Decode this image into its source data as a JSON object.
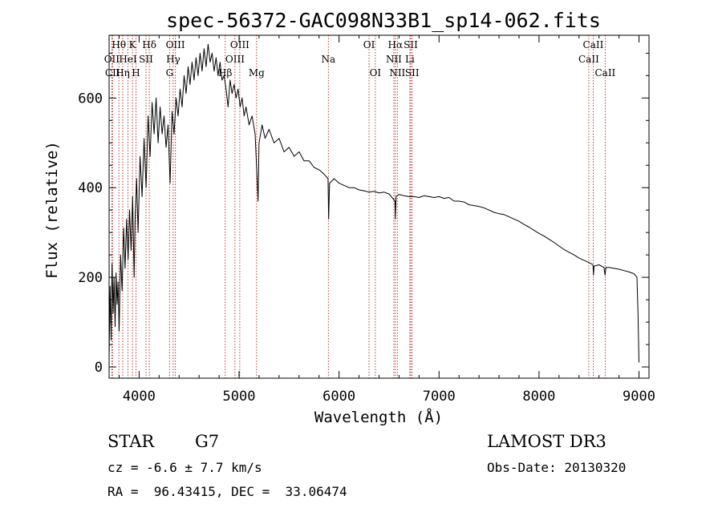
{
  "chart_data": {
    "type": "line",
    "title": "spec-56372-GAC098N33B1_sp14-062.fits",
    "xlabel": "Wavelength (Å)",
    "ylabel": "Flux (relative)",
    "xlim": [
      3700,
      9100
    ],
    "ylim": [
      -25,
      740
    ],
    "xticks": [
      4000,
      5000,
      6000,
      7000,
      8000,
      9000
    ],
    "yticks": [
      0,
      200,
      400,
      600
    ],
    "series": [
      {
        "name": "flux",
        "points": [
          [
            3700,
            20
          ],
          [
            3710,
            180
          ],
          [
            3720,
            60
          ],
          [
            3730,
            230
          ],
          [
            3740,
            120
          ],
          [
            3750,
            200
          ],
          [
            3760,
            90
          ],
          [
            3770,
            210
          ],
          [
            3780,
            140
          ],
          [
            3790,
            190
          ],
          [
            3800,
            80
          ],
          [
            3815,
            250
          ],
          [
            3830,
            170
          ],
          [
            3845,
            310
          ],
          [
            3860,
            220
          ],
          [
            3875,
            330
          ],
          [
            3890,
            240
          ],
          [
            3905,
            350
          ],
          [
            3920,
            260
          ],
          [
            3935,
            380
          ],
          [
            3950,
            200
          ],
          [
            3960,
            330
          ],
          [
            3975,
            420
          ],
          [
            3990,
            300
          ],
          [
            4010,
            470
          ],
          [
            4030,
            380
          ],
          [
            4050,
            510
          ],
          [
            4070,
            400
          ],
          [
            4090,
            560
          ],
          [
            4110,
            470
          ],
          [
            4130,
            590
          ],
          [
            4150,
            520
          ],
          [
            4170,
            600
          ],
          [
            4190,
            500
          ],
          [
            4210,
            580
          ],
          [
            4230,
            520
          ],
          [
            4250,
            560
          ],
          [
            4270,
            490
          ],
          [
            4290,
            540
          ],
          [
            4310,
            410
          ],
          [
            4330,
            570
          ],
          [
            4350,
            520
          ],
          [
            4370,
            600
          ],
          [
            4390,
            560
          ],
          [
            4410,
            620
          ],
          [
            4430,
            580
          ],
          [
            4450,
            650
          ],
          [
            4470,
            610
          ],
          [
            4490,
            670
          ],
          [
            4510,
            630
          ],
          [
            4530,
            680
          ],
          [
            4550,
            640
          ],
          [
            4570,
            690
          ],
          [
            4590,
            650
          ],
          [
            4610,
            700
          ],
          [
            4630,
            660
          ],
          [
            4650,
            710
          ],
          [
            4670,
            670
          ],
          [
            4690,
            720
          ],
          [
            4710,
            680
          ],
          [
            4730,
            700
          ],
          [
            4750,
            660
          ],
          [
            4770,
            690
          ],
          [
            4790,
            650
          ],
          [
            4810,
            680
          ],
          [
            4830,
            640
          ],
          [
            4850,
            650
          ],
          [
            4870,
            620
          ],
          [
            4890,
            580
          ],
          [
            4910,
            640
          ],
          [
            4930,
            610
          ],
          [
            4950,
            630
          ],
          [
            4970,
            600
          ],
          [
            4990,
            620
          ],
          [
            5010,
            580
          ],
          [
            5030,
            600
          ],
          [
            5050,
            560
          ],
          [
            5070,
            580
          ],
          [
            5100,
            540
          ],
          [
            5130,
            560
          ],
          [
            5160,
            520
          ],
          [
            5180,
            420
          ],
          [
            5190,
            370
          ],
          [
            5200,
            500
          ],
          [
            5230,
            540
          ],
          [
            5260,
            510
          ],
          [
            5300,
            530
          ],
          [
            5350,
            500
          ],
          [
            5400,
            510
          ],
          [
            5450,
            480
          ],
          [
            5500,
            490
          ],
          [
            5550,
            470
          ],
          [
            5600,
            480
          ],
          [
            5650,
            460
          ],
          [
            5700,
            460
          ],
          [
            5750,
            445
          ],
          [
            5800,
            440
          ],
          [
            5850,
            430
          ],
          [
            5890,
            420
          ],
          [
            5896,
            330
          ],
          [
            5905,
            410
          ],
          [
            5950,
            420
          ],
          [
            6000,
            410
          ],
          [
            6050,
            405
          ],
          [
            6100,
            400
          ],
          [
            6150,
            400
          ],
          [
            6200,
            395
          ],
          [
            6250,
            393
          ],
          [
            6300,
            390
          ],
          [
            6350,
            392
          ],
          [
            6400,
            388
          ],
          [
            6450,
            390
          ],
          [
            6500,
            386
          ],
          [
            6560,
            370
          ],
          [
            6563,
            330
          ],
          [
            6570,
            380
          ],
          [
            6600,
            385
          ],
          [
            6650,
            382
          ],
          [
            6700,
            380
          ],
          [
            6750,
            380
          ],
          [
            6800,
            378
          ],
          [
            6850,
            382
          ],
          [
            6900,
            380
          ],
          [
            6950,
            378
          ],
          [
            7000,
            380
          ],
          [
            7050,
            376
          ],
          [
            7100,
            378
          ],
          [
            7150,
            370
          ],
          [
            7200,
            370
          ],
          [
            7250,
            368
          ],
          [
            7300,
            362
          ],
          [
            7350,
            360
          ],
          [
            7400,
            358
          ],
          [
            7450,
            355
          ],
          [
            7500,
            350
          ],
          [
            7550,
            345
          ],
          [
            7600,
            342
          ],
          [
            7650,
            340
          ],
          [
            7700,
            335
          ],
          [
            7750,
            330
          ],
          [
            7800,
            325
          ],
          [
            7850,
            318
          ],
          [
            7900,
            312
          ],
          [
            7950,
            305
          ],
          [
            8000,
            298
          ],
          [
            8050,
            292
          ],
          [
            8100,
            285
          ],
          [
            8150,
            278
          ],
          [
            8200,
            270
          ],
          [
            8250,
            262
          ],
          [
            8300,
            256
          ],
          [
            8350,
            250
          ],
          [
            8400,
            243
          ],
          [
            8450,
            238
          ],
          [
            8500,
            233
          ],
          [
            8540,
            228
          ],
          [
            8545,
            205
          ],
          [
            8550,
            225
          ],
          [
            8600,
            228
          ],
          [
            8650,
            222
          ],
          [
            8660,
            205
          ],
          [
            8670,
            222
          ],
          [
            8700,
            222
          ],
          [
            8750,
            220
          ],
          [
            8800,
            218
          ],
          [
            8850,
            215
          ],
          [
            8900,
            212
          ],
          [
            8950,
            208
          ],
          [
            8980,
            200
          ],
          [
            8990,
            120
          ],
          [
            9000,
            10
          ]
        ]
      }
    ],
    "line_markers": [
      {
        "label": "Hθ",
        "x": 3798,
        "row": 0
      },
      {
        "label": "OII",
        "x": 3727,
        "row": 1
      },
      {
        "label": "CII",
        "x": 3734,
        "row": 2
      },
      {
        "label": "K",
        "x": 3934,
        "row": 0
      },
      {
        "label": "HeI",
        "x": 3889,
        "row": 1
      },
      {
        "label": "Hη",
        "x": 3836,
        "row": 2
      },
      {
        "label": "Hδ",
        "x": 4102,
        "row": 0
      },
      {
        "label": "SII",
        "x": 4069,
        "row": 1
      },
      {
        "label": "H",
        "x": 3969,
        "row": 2
      },
      {
        "label": "OIII",
        "x": 4363,
        "row": 0
      },
      {
        "label": "Hγ",
        "x": 4341,
        "row": 1
      },
      {
        "label": "G",
        "x": 4305,
        "row": 2
      },
      {
        "label": "OIII",
        "x": 5007,
        "row": 0
      },
      {
        "label": "OIII",
        "x": 4959,
        "row": 1
      },
      {
        "label": "Hβ",
        "x": 4861,
        "row": 2
      },
      {
        "label": "Mg",
        "x": 5175,
        "row": 2
      },
      {
        "label": "Na",
        "x": 5893,
        "row": 1
      },
      {
        "label": "OI",
        "x": 6300,
        "row": 0
      },
      {
        "label": "OI",
        "x": 6363,
        "row": 2
      },
      {
        "label": "Hα",
        "x": 6563,
        "row": 0
      },
      {
        "label": "SII",
        "x": 6717,
        "row": 0
      },
      {
        "label": "NII",
        "x": 6548,
        "row": 1
      },
      {
        "label": "Li",
        "x": 6708,
        "row": 1
      },
      {
        "label": "NII",
        "x": 6583,
        "row": 2
      },
      {
        "label": "SII",
        "x": 6731,
        "row": 2
      },
      {
        "label": "CaII",
        "x": 8542,
        "row": 0
      },
      {
        "label": "CaII",
        "x": 8498,
        "row": 1
      },
      {
        "label": "CaII",
        "x": 8662,
        "row": 2
      }
    ]
  },
  "info": {
    "object_type": "STAR",
    "subclass": "G7",
    "survey": "LAMOST DR3",
    "redshift": "cz = -6.6 ± 7.7 km/s",
    "obs_date": "Obs-Date: 20130320",
    "coords": "RA =  96.43415, DEC =  33.06474"
  }
}
